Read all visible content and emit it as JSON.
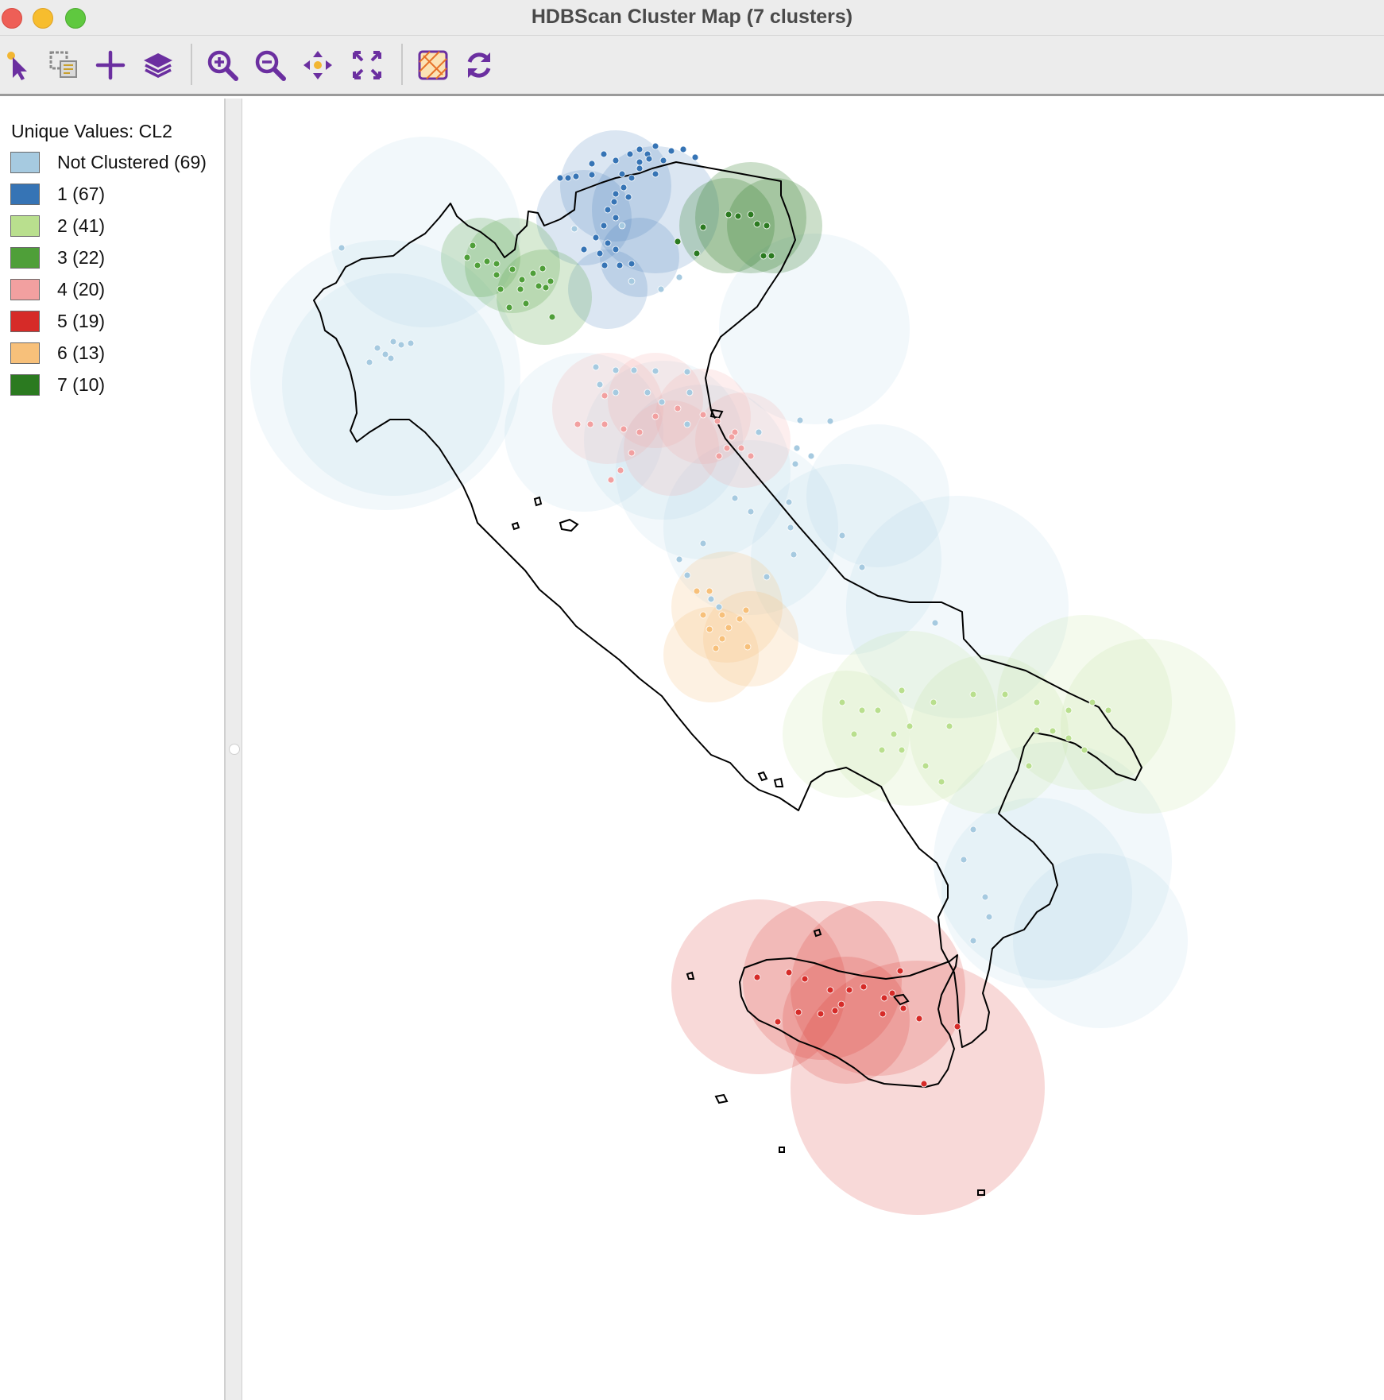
{
  "window": {
    "title": "HDBScan Cluster Map (7 clusters)"
  },
  "toolbar": {
    "tools": [
      {
        "icon": "select-pointer-icon"
      },
      {
        "icon": "selection-shape-icon"
      },
      {
        "icon": "add-layer-icon"
      },
      {
        "icon": "layers-icon"
      },
      {
        "icon": "zoom-in-icon"
      },
      {
        "icon": "zoom-out-icon"
      },
      {
        "icon": "pan-icon"
      },
      {
        "icon": "full-extent-icon"
      },
      {
        "icon": "basemap-icon"
      },
      {
        "icon": "refresh-icon"
      }
    ]
  },
  "legend": {
    "title": "Unique Values: CL2",
    "items": [
      {
        "label": "Not Clustered (69)",
        "color": "#a6cae0"
      },
      {
        "label": "1 (67)",
        "color": "#3674b5"
      },
      {
        "label": "2 (41)",
        "color": "#b9df8e"
      },
      {
        "label": "3 (22)",
        "color": "#4f9f39"
      },
      {
        "label": "4 (20)",
        "color": "#f2a0a0"
      },
      {
        "label": "5 (19)",
        "color": "#d62b28"
      },
      {
        "label": "6 (13)",
        "color": "#f7c07a"
      },
      {
        "label": "7 (10)",
        "color": "#2b7a20"
      }
    ]
  },
  "map": {
    "outline_color": "#000000"
  }
}
